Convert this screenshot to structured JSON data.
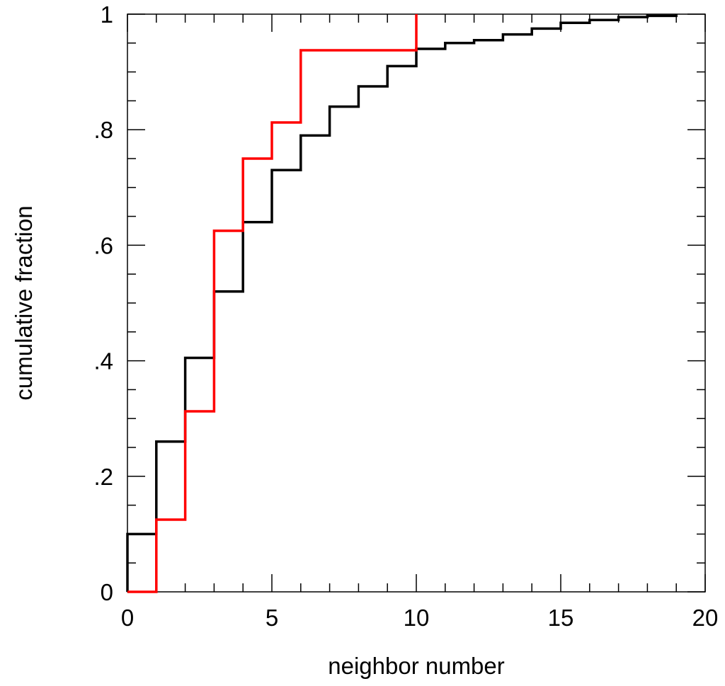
{
  "chart_data": {
    "type": "line",
    "title": "",
    "xlabel": "neighbor number",
    "ylabel": "cumulative fraction",
    "xlim": [
      0,
      20
    ],
    "ylim": [
      0,
      1
    ],
    "grid": false,
    "x_ticks": [
      0,
      5,
      10,
      15,
      20
    ],
    "x_tick_labels": [
      "0",
      "5",
      "10",
      "15",
      "20"
    ],
    "x_minor_step": 1,
    "y_ticks": [
      0,
      0.2,
      0.4,
      0.6,
      0.8,
      1
    ],
    "y_tick_labels": [
      "0",
      ".2",
      ".4",
      ".6",
      ".8",
      "1"
    ],
    "y_minor_step": 0.05,
    "series": [
      {
        "color": "#000000",
        "style": "step",
        "x": [
          0,
          1,
          2,
          3,
          4,
          5,
          6,
          7,
          8,
          9,
          10,
          11,
          12,
          13,
          14,
          15,
          16,
          17,
          18,
          19
        ],
        "y": [
          0.1,
          0.26,
          0.405,
          0.52,
          0.64,
          0.73,
          0.79,
          0.84,
          0.875,
          0.91,
          0.94,
          0.95,
          0.955,
          0.965,
          0.975,
          0.985,
          0.99,
          0.995,
          0.997,
          1.0
        ]
      },
      {
        "color": "#ff0000",
        "style": "step",
        "x": [
          0,
          1,
          2,
          3,
          4,
          5,
          6,
          10
        ],
        "y": [
          0.0,
          0.125,
          0.3125,
          0.625,
          0.75,
          0.8125,
          0.9375,
          1.0
        ]
      }
    ]
  }
}
